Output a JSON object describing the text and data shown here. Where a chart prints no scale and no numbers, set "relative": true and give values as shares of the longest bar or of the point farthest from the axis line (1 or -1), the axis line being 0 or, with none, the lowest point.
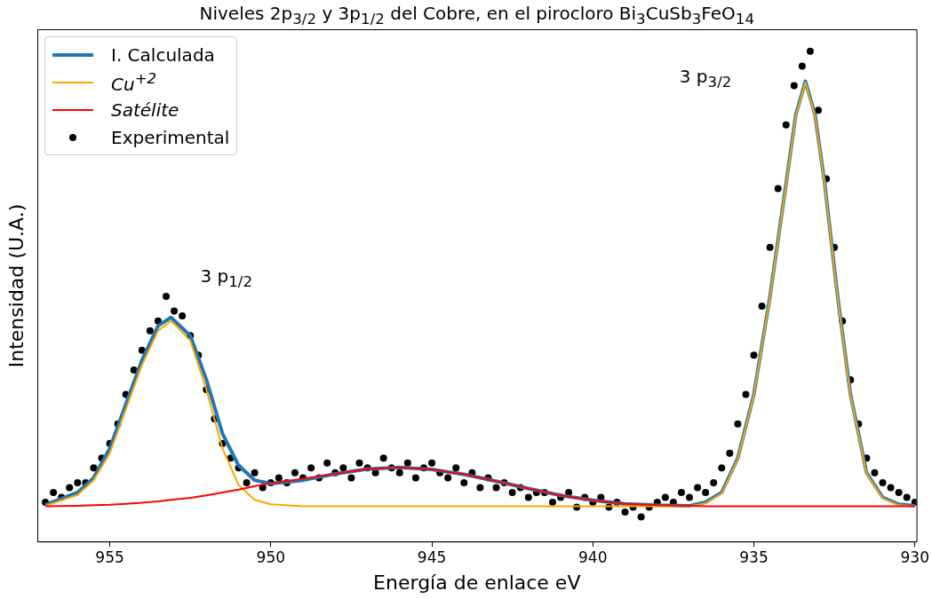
{
  "chart_data": {
    "type": "line",
    "title": "Niveles 2p$_{3/2}$ y 3p$_{1/2}$ del Cobre, en el pirocloro Bi$_{3}$CuSb$_{3}$FeO$_{14}$",
    "xlabel": "Energía de enlace eV",
    "ylabel": "Intensidad (U.A.)",
    "relative": true,
    "xlim": [
      957.25,
      929.95
    ],
    "xticks": [
      955,
      950,
      945,
      940,
      935,
      930
    ],
    "legend": "top left",
    "annotations": [
      "3 p$_{1/2}$",
      "3 p$_{3/2}$"
    ],
    "series": [
      {
        "name": "I. Calculada",
        "color": "#1f77b4",
        "type": "line",
        "x": [
          957,
          956,
          955.5,
          955,
          954.5,
          954,
          953.5,
          953.1,
          952.5,
          952,
          951.5,
          951,
          950.5,
          950,
          949,
          948,
          947,
          946,
          945,
          944,
          943,
          942,
          941,
          940,
          939,
          938,
          937,
          936.5,
          936,
          935.5,
          935,
          934.5,
          934,
          933.7,
          933.4,
          933.1,
          932.8,
          932.4,
          932,
          931.5,
          931,
          930.5,
          930
        ],
        "values": [
          0.075,
          0.1,
          0.13,
          0.19,
          0.28,
          0.37,
          0.44,
          0.457,
          0.42,
          0.33,
          0.22,
          0.155,
          0.125,
          0.118,
          0.125,
          0.138,
          0.148,
          0.151,
          0.147,
          0.137,
          0.123,
          0.108,
          0.094,
          0.084,
          0.077,
          0.074,
          0.073,
          0.08,
          0.1,
          0.17,
          0.3,
          0.5,
          0.73,
          0.87,
          0.939,
          0.87,
          0.73,
          0.5,
          0.3,
          0.14,
          0.09,
          0.076,
          0.073
        ]
      },
      {
        "name": "Cu$^{+2}$",
        "color": "#ffa500",
        "type": "line",
        "x": [
          957,
          956,
          955.5,
          955,
          954.5,
          954,
          953.5,
          953.1,
          952.5,
          952,
          951.5,
          951,
          950.5,
          950,
          949,
          948,
          947,
          946,
          945,
          944,
          943,
          942,
          941,
          940,
          939,
          938,
          937,
          936.5,
          936,
          935.5,
          935,
          934.5,
          934,
          933.7,
          933.4,
          933.1,
          932.8,
          932.4,
          932,
          931.5,
          931,
          930.5,
          930
        ],
        "values": [
          0.073,
          0.095,
          0.125,
          0.18,
          0.27,
          0.36,
          0.43,
          0.45,
          0.41,
          0.31,
          0.19,
          0.115,
          0.085,
          0.076,
          0.072,
          0.072,
          0.072,
          0.072,
          0.072,
          0.072,
          0.072,
          0.072,
          0.072,
          0.072,
          0.072,
          0.072,
          0.072,
          0.078,
          0.098,
          0.168,
          0.298,
          0.498,
          0.728,
          0.868,
          0.937,
          0.868,
          0.728,
          0.498,
          0.298,
          0.138,
          0.088,
          0.074,
          0.072
        ]
      },
      {
        "name": "Satélite",
        "color": "#ff0000",
        "type": "line",
        "x": [
          957,
          956,
          955.5,
          955,
          954.5,
          954,
          953.5,
          953.1,
          952.5,
          952,
          951.5,
          951,
          950.5,
          950,
          949,
          948,
          947,
          946,
          945,
          944,
          943,
          942,
          941,
          940,
          939,
          938,
          937,
          936.5,
          936,
          935.5,
          935,
          934.5,
          934,
          933.7,
          933.4,
          933.1,
          932.8,
          932.4,
          932,
          931.5,
          931,
          930.5,
          930
        ],
        "values": [
          0.072,
          0.073,
          0.074,
          0.075,
          0.077,
          0.079,
          0.082,
          0.085,
          0.089,
          0.094,
          0.1,
          0.106,
          0.113,
          0.119,
          0.128,
          0.138,
          0.148,
          0.151,
          0.147,
          0.137,
          0.123,
          0.108,
          0.094,
          0.084,
          0.077,
          0.074,
          0.073,
          0.072,
          0.072,
          0.072,
          0.072,
          0.072,
          0.072,
          0.072,
          0.072,
          0.072,
          0.072,
          0.072,
          0.072,
          0.072,
          0.072,
          0.072,
          0.072
        ]
      },
      {
        "name": "Experimental",
        "color": "#000000",
        "type": "scatter",
        "x": [
          957.0,
          956.75,
          956.5,
          956.25,
          956.0,
          955.75,
          955.5,
          955.25,
          955.0,
          954.75,
          954.5,
          954.25,
          954.0,
          953.75,
          953.5,
          953.25,
          953.0,
          952.75,
          952.5,
          952.25,
          952.0,
          951.75,
          951.5,
          951.25,
          951.0,
          950.75,
          950.5,
          950.25,
          950.0,
          949.75,
          949.5,
          949.25,
          949.0,
          948.75,
          948.5,
          948.25,
          948.0,
          947.75,
          947.5,
          947.25,
          947.0,
          946.75,
          946.5,
          946.25,
          946.0,
          945.75,
          945.5,
          945.25,
          945.0,
          944.75,
          944.5,
          944.25,
          944.0,
          943.75,
          943.5,
          943.25,
          943.0,
          942.75,
          942.5,
          942.25,
          942.0,
          941.75,
          941.5,
          941.25,
          941.0,
          940.75,
          940.5,
          940.25,
          940.0,
          939.75,
          939.5,
          939.25,
          939.0,
          938.75,
          938.5,
          938.25,
          938.0,
          937.75,
          937.5,
          937.25,
          937.0,
          936.75,
          936.5,
          936.25,
          936.0,
          935.75,
          935.5,
          935.25,
          935.0,
          934.75,
          934.5,
          934.25,
          934.0,
          933.75,
          933.5,
          933.25,
          933.0,
          932.75,
          932.5,
          932.25,
          932.0,
          931.75,
          931.5,
          931.25,
          931.0,
          930.75,
          930.5,
          930.25,
          930.0
        ],
        "values": [
          0.08,
          0.1,
          0.09,
          0.11,
          0.12,
          0.12,
          0.15,
          0.17,
          0.2,
          0.24,
          0.3,
          0.35,
          0.39,
          0.43,
          0.45,
          0.5,
          0.47,
          0.46,
          0.42,
          0.38,
          0.31,
          0.25,
          0.2,
          0.17,
          0.15,
          0.12,
          0.14,
          0.11,
          0.12,
          0.13,
          0.12,
          0.14,
          0.13,
          0.15,
          0.13,
          0.16,
          0.14,
          0.15,
          0.13,
          0.16,
          0.15,
          0.14,
          0.17,
          0.15,
          0.14,
          0.16,
          0.13,
          0.15,
          0.16,
          0.14,
          0.13,
          0.15,
          0.12,
          0.14,
          0.11,
          0.13,
          0.11,
          0.12,
          0.1,
          0.11,
          0.09,
          0.1,
          0.1,
          0.08,
          0.09,
          0.1,
          0.07,
          0.09,
          0.08,
          0.09,
          0.07,
          0.08,
          0.06,
          0.07,
          0.05,
          0.07,
          0.08,
          0.09,
          0.08,
          0.1,
          0.09,
          0.11,
          0.1,
          0.12,
          0.15,
          0.18,
          0.24,
          0.3,
          0.38,
          0.48,
          0.6,
          0.72,
          0.85,
          0.93,
          0.97,
          1.0,
          0.88,
          0.74,
          0.6,
          0.45,
          0.33,
          0.24,
          0.17,
          0.14,
          0.12,
          0.11,
          0.1,
          0.09,
          0.08
        ]
      }
    ]
  }
}
